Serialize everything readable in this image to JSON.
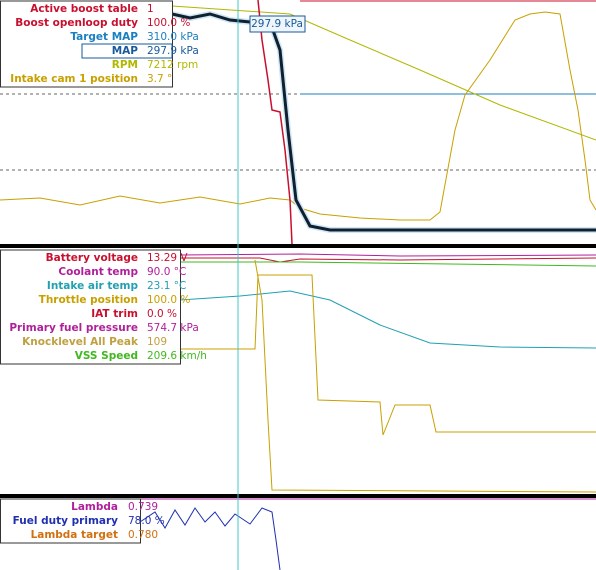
{
  "cursor_label": "297.9 kPa",
  "panels": [
    {
      "channels": [
        {
          "name": "Active boost table",
          "value": "1",
          "color": "#c8102e"
        },
        {
          "name": "Boost openloop duty",
          "value": "100.0 %",
          "color": "#c8102e"
        },
        {
          "name": "Target MAP",
          "value": "310.0 kPa",
          "color": "#1a7fc0"
        },
        {
          "name": "MAP",
          "value": "297.9 kPa",
          "color": "#1a5a9a"
        },
        {
          "name": "RPM",
          "value": "7212 rpm",
          "color": "#b0b800"
        },
        {
          "name": "Intake cam 1 position",
          "value": "3.7 °",
          "color": "#c8a000"
        }
      ]
    },
    {
      "channels": [
        {
          "name": "Battery voltage",
          "value": "13.29 V",
          "color": "#c8102e"
        },
        {
          "name": "Coolant temp",
          "value": "90.0 °C",
          "color": "#b0209a"
        },
        {
          "name": "Intake air temp",
          "value": "23.1 °C",
          "color": "#20a0b0"
        },
        {
          "name": "Throttle position",
          "value": "100.0 %",
          "color": "#c8a000"
        },
        {
          "name": "IAT trim",
          "value": "0.0 %",
          "color": "#c8102e"
        },
        {
          "name": "Primary fuel pressure",
          "value": "574.7 kPa",
          "color": "#b0209a"
        },
        {
          "name": "Knocklevel All Peak",
          "value": "109",
          "color": "#c0a040"
        },
        {
          "name": "VSS Speed",
          "value": "209.6 km/h",
          "color": "#40b820"
        }
      ]
    },
    {
      "channels": [
        {
          "name": "Lambda",
          "value": "0.739",
          "color": "#b0209a"
        },
        {
          "name": "Fuel duty primary",
          "value": "78.0 %",
          "color": "#2030b0"
        },
        {
          "name": "Lambda target",
          "value": "0.780",
          "color": "#d07010"
        }
      ]
    }
  ]
}
